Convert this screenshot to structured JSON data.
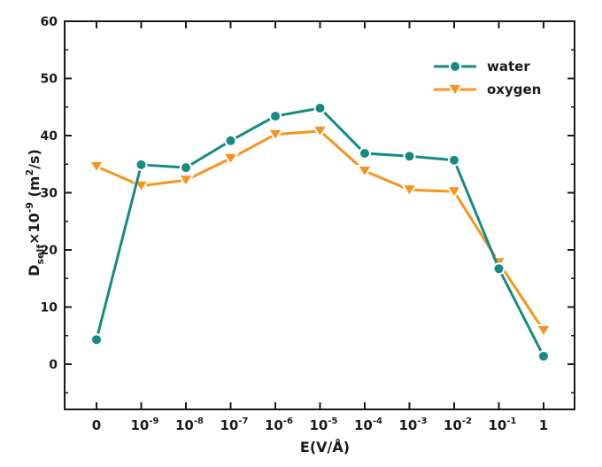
{
  "chart_data": {
    "type": "line",
    "title": "",
    "xlabel": "E(V/Å)",
    "ylabel": {
      "main": "D",
      "sub": "self",
      "mid": "×10",
      "exp": "-9",
      "unit_open": " (m",
      "unit_exp": "2",
      "unit_close": "/s)"
    },
    "categories": [
      {
        "base": "0",
        "exp": ""
      },
      {
        "base": "10",
        "exp": "-9"
      },
      {
        "base": "10",
        "exp": "-8"
      },
      {
        "base": "10",
        "exp": "-7"
      },
      {
        "base": "10",
        "exp": "-6"
      },
      {
        "base": "10",
        "exp": "-5"
      },
      {
        "base": "10",
        "exp": "-4"
      },
      {
        "base": "10",
        "exp": "-3"
      },
      {
        "base": "10",
        "exp": "-2"
      },
      {
        "base": "10",
        "exp": "-1"
      },
      {
        "base": "1",
        "exp": ""
      }
    ],
    "ylim": [
      -8,
      60
    ],
    "yticks": [
      0,
      10,
      20,
      30,
      40,
      50,
      60
    ],
    "grid": false,
    "legend": "top-right",
    "series": [
      {
        "name": "water",
        "marker": "circle",
        "color": "#168a84",
        "values": [
          4.3,
          34.9,
          34.4,
          39.1,
          43.4,
          44.8,
          36.9,
          36.4,
          35.7,
          16.7,
          1.4
        ]
      },
      {
        "name": "oxygen",
        "marker": "triangle-down",
        "color": "#f7941d",
        "values": [
          34.6,
          31.2,
          32.2,
          36.0,
          40.2,
          40.8,
          33.8,
          30.5,
          30.2,
          17.8,
          5.9
        ]
      }
    ]
  }
}
